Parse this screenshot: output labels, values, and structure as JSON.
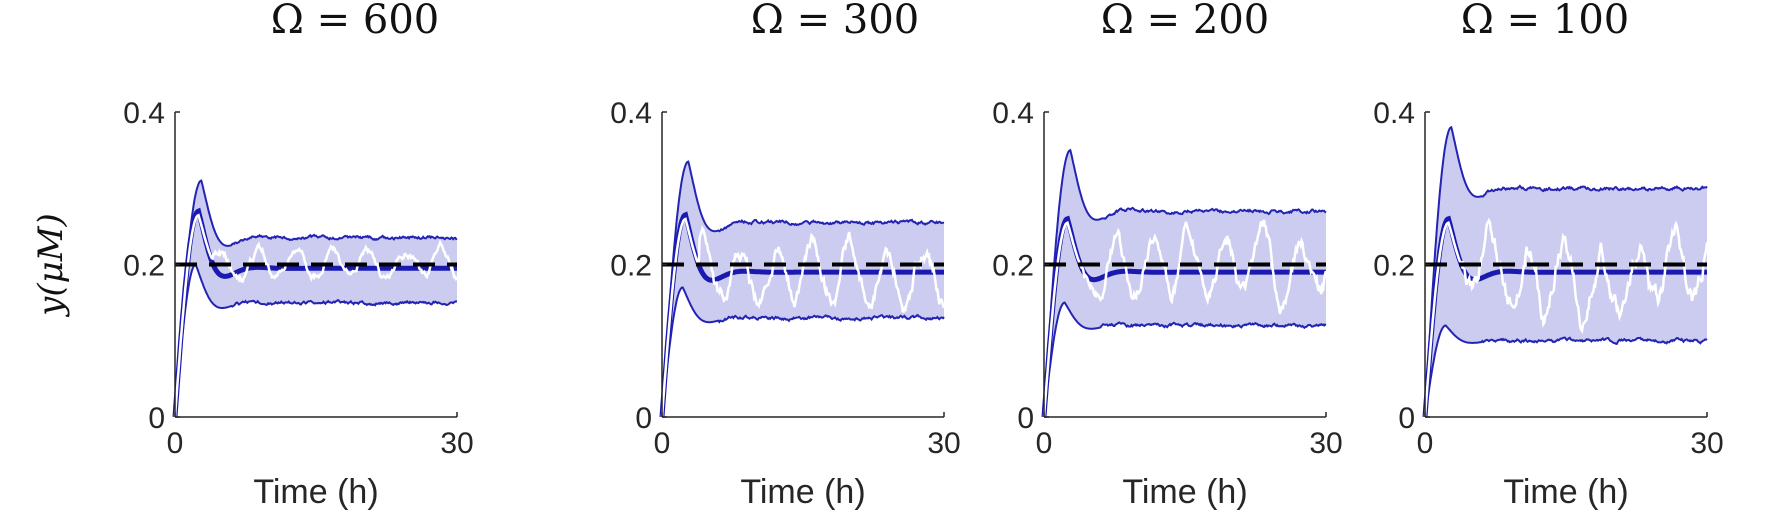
{
  "chart_data": [
    {
      "type": "area",
      "title": "Ω = 600",
      "xlabel": "Time (h)",
      "ylabel": "y(μM)",
      "xlim": [
        0,
        30
      ],
      "ylim": [
        0,
        0.4
      ],
      "xticks": [
        "0",
        "30"
      ],
      "yticks": [
        "0",
        "0.2",
        "0.4"
      ],
      "setpoint": 0.2,
      "band": {
        "peak_upper": 0.31,
        "peak_lower": 0.2,
        "upper": 0.235,
        "lower": 0.15
      },
      "mean": {
        "peak": 0.27,
        "steady": 0.195
      },
      "sample": {
        "steady": 0.2,
        "amplitude": 0.03
      }
    },
    {
      "type": "area",
      "title": "Ω = 300",
      "xlabel": "Time (h)",
      "ylabel": "",
      "xlim": [
        0,
        30
      ],
      "ylim": [
        0,
        0.4
      ],
      "xticks": [
        "0",
        "30"
      ],
      "yticks": [
        "0",
        "0.2",
        "0.4"
      ],
      "setpoint": 0.2,
      "band": {
        "peak_upper": 0.335,
        "peak_lower": 0.17,
        "upper": 0.255,
        "lower": 0.13
      },
      "mean": {
        "peak": 0.265,
        "steady": 0.19
      },
      "sample": {
        "steady": 0.19,
        "amplitude": 0.055
      }
    },
    {
      "type": "area",
      "title": "Ω = 200",
      "xlabel": "Time (h)",
      "ylabel": "",
      "xlim": [
        0,
        30
      ],
      "ylim": [
        0,
        0.4
      ],
      "xticks": [
        "0",
        "30"
      ],
      "yticks": [
        "0",
        "0.2",
        "0.4"
      ],
      "setpoint": 0.2,
      "band": {
        "peak_upper": 0.35,
        "peak_lower": 0.15,
        "upper": 0.27,
        "lower": 0.12
      },
      "mean": {
        "peak": 0.26,
        "steady": 0.19
      },
      "sample": {
        "steady": 0.19,
        "amplitude": 0.06
      }
    },
    {
      "type": "area",
      "title": "Ω = 100",
      "xlabel": "Time (h)",
      "ylabel": "",
      "xlim": [
        0,
        30
      ],
      "ylim": [
        0,
        0.4
      ],
      "xticks": [
        "0",
        "30"
      ],
      "yticks": [
        "0",
        "0.2",
        "0.4"
      ],
      "setpoint": 0.2,
      "band": {
        "peak_upper": 0.38,
        "peak_lower": 0.12,
        "upper": 0.3,
        "lower": 0.1
      },
      "mean": {
        "peak": 0.26,
        "steady": 0.19
      },
      "sample": {
        "steady": 0.19,
        "amplitude": 0.08
      }
    }
  ],
  "colors": {
    "band_fill": "#ccccf0",
    "band_edge": "#2424b4",
    "mean_line": "#1a1ab0",
    "setpoint_line": "#000000",
    "sample_line": "#ffffff",
    "axis": "#262626"
  }
}
